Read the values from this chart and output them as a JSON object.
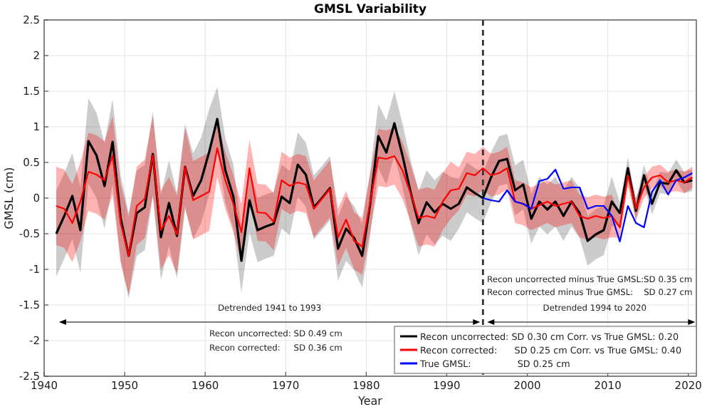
{
  "chart_data": {
    "type": "line",
    "title": "GMSL Variability",
    "xlabel": "Year",
    "ylabel": "GMSL (cm)",
    "xlim": [
      1940,
      2021
    ],
    "xticks": [
      1940,
      1950,
      1960,
      1970,
      1980,
      1990,
      2000,
      2010,
      2020
    ],
    "ylim": [
      -2.5,
      2.5
    ],
    "yticks": [
      -2.5,
      -2,
      -1.5,
      -1,
      -0.5,
      0,
      0.5,
      1,
      1.5,
      2,
      2.5
    ],
    "grid": true,
    "legend": "bottom right",
    "ref_lines": [
      {
        "axis": "x",
        "value": 1994.5,
        "color": "#333333",
        "line_style": "dashed"
      }
    ],
    "annotations": [
      "Detrended 1941 to 1993",
      "Detrended 1994 to 2020",
      "Recon uncorrected: SD 0.49 cm",
      "Recon corrected:     SD 0.36 cm",
      "Recon uncorrected minus True GMSL:SD 0.35 cm",
      "Recon corrected minus True GMSL:    SD 0.27 cm"
    ],
    "series": [
      {
        "name": "Recon uncorrected: SD 0.30 cm Corr. vs True GMSL: 0.20",
        "color": "#000000",
        "x": [
          1941.5,
          1942.5,
          1943.5,
          1944.5,
          1945.5,
          1946.5,
          1947.5,
          1948.5,
          1949.5,
          1950.5,
          1951.5,
          1952.5,
          1953.5,
          1954.5,
          1955.5,
          1956.5,
          1957.5,
          1958.5,
          1959.5,
          1960.5,
          1961.5,
          1962.5,
          1963.5,
          1964.5,
          1965.5,
          1966.5,
          1967.5,
          1968.5,
          1969.5,
          1970.5,
          1971.5,
          1972.5,
          1973.5,
          1974.5,
          1975.5,
          1976.5,
          1977.5,
          1978.5,
          1979.5,
          1980.5,
          1981.5,
          1982.5,
          1983.5,
          1984.5,
          1985.5,
          1986.5,
          1987.5,
          1988.5,
          1989.5,
          1990.5,
          1991.5,
          1992.5,
          1993.5,
          1994.5,
          1995.5,
          1996.5,
          1997.5,
          1998.5,
          1999.5,
          2000.5,
          2001.5,
          2002.5,
          2003.5,
          2004.5,
          2005.5,
          2006.5,
          2007.5,
          2008.5,
          2009.5,
          2010.5,
          2011.5,
          2012.5,
          2013.5,
          2014.5,
          2015.5,
          2016.5,
          2017.5,
          2018.5,
          2019.5,
          2020.5
        ],
        "values": [
          -0.5,
          -0.25,
          0.03,
          -0.45,
          0.8,
          0.6,
          0.17,
          0.79,
          -0.28,
          -0.81,
          -0.21,
          -0.13,
          0.62,
          -0.55,
          -0.07,
          -0.53,
          0.44,
          0.03,
          0.25,
          0.65,
          1.11,
          0.39,
          0.02,
          -0.88,
          -0.03,
          -0.45,
          -0.4,
          -0.36,
          0.02,
          -0.07,
          0.47,
          0.33,
          -0.13,
          0,
          0.14,
          -0.71,
          -0.43,
          -0.56,
          -0.81,
          -0.08,
          0.87,
          0.64,
          1.05,
          0.6,
          0.09,
          -0.35,
          -0.06,
          -0.2,
          -0.08,
          -0.15,
          -0.08,
          0.15,
          0.07,
          0,
          0.29,
          0.52,
          0.55,
          0.11,
          0.19,
          -0.29,
          -0.05,
          -0.16,
          -0.05,
          -0.25,
          -0.05,
          -0.21,
          -0.6,
          -0.51,
          -0.45,
          -0.05,
          -0.21,
          0.42,
          -0.18,
          0.32,
          -0.08,
          0.22,
          0.2,
          0.39,
          0.22,
          0.25
        ],
        "lower": [
          -1.1,
          -0.85,
          -0.57,
          -1.05,
          0.2,
          0,
          -0.43,
          0.19,
          -0.88,
          -1.41,
          -0.81,
          -0.73,
          0.02,
          -1.15,
          -0.67,
          -1.13,
          -0.16,
          -0.57,
          -0.35,
          0.05,
          0.66,
          -0.06,
          -0.43,
          -1.33,
          -0.48,
          -0.9,
          -0.85,
          -0.81,
          -0.43,
          -0.52,
          0.02,
          -0.12,
          -0.58,
          -0.45,
          -0.31,
          -1.16,
          -0.88,
          -1.01,
          -1.26,
          -0.53,
          0.42,
          0.19,
          0.6,
          0.15,
          -0.36,
          -0.8,
          -0.51,
          -0.65,
          -0.53,
          -0.6,
          -0.43,
          -0.2,
          -0.28,
          -0.35,
          -0.06,
          0.17,
          0.2,
          -0.24,
          -0.16,
          -0.64,
          -0.4,
          -0.51,
          -0.4,
          -0.6,
          -0.4,
          -0.56,
          -0.95,
          -0.86,
          -0.8,
          -0.4,
          -0.36,
          0.27,
          -0.33,
          0.17,
          -0.23,
          0.07,
          0.05,
          0.24,
          0.07,
          0.1
        ],
        "upper": [
          0.1,
          0.35,
          0.63,
          0.15,
          1.4,
          1.2,
          0.77,
          1.39,
          0.32,
          -0.21,
          0.39,
          0.47,
          1.22,
          0.05,
          0.53,
          0.07,
          1.04,
          0.63,
          0.85,
          1.25,
          1.56,
          0.84,
          0.47,
          -0.43,
          0.42,
          0,
          0.05,
          0.09,
          0.47,
          0.38,
          0.92,
          0.78,
          0.32,
          0.45,
          0.59,
          -0.26,
          0.02,
          -0.11,
          -0.36,
          0.37,
          1.32,
          1.09,
          1.5,
          1.05,
          0.54,
          0.1,
          0.39,
          0.25,
          0.37,
          0.3,
          0.27,
          0.5,
          0.42,
          0.35,
          0.64,
          0.87,
          0.9,
          0.46,
          0.54,
          0.06,
          0.3,
          0.19,
          0.3,
          0.1,
          0.3,
          0.14,
          -0.25,
          -0.16,
          -0.1,
          0.3,
          -0.06,
          0.57,
          -0.03,
          0.47,
          0.07,
          0.37,
          0.35,
          0.54,
          0.37,
          0.4
        ]
      },
      {
        "name": "Recon corrected:      SD 0.25 cm Corr. vs True GMSL: 0.40",
        "color": "#ff0000",
        "x": [
          1941.5,
          1942.5,
          1943.5,
          1944.5,
          1945.5,
          1946.5,
          1947.5,
          1948.5,
          1949.5,
          1950.5,
          1951.5,
          1952.5,
          1953.5,
          1954.5,
          1955.5,
          1956.5,
          1957.5,
          1958.5,
          1959.5,
          1960.5,
          1961.5,
          1962.5,
          1963.5,
          1964.5,
          1965.5,
          1966.5,
          1967.5,
          1968.5,
          1969.5,
          1970.5,
          1971.5,
          1972.5,
          1973.5,
          1974.5,
          1975.5,
          1976.5,
          1977.5,
          1978.5,
          1979.5,
          1980.5,
          1981.5,
          1982.5,
          1983.5,
          1984.5,
          1985.5,
          1986.5,
          1987.5,
          1988.5,
          1989.5,
          1990.5,
          1991.5,
          1992.5,
          1993.5,
          1994.5,
          1995.5,
          1996.5,
          1997.5,
          1998.5,
          1999.5,
          2000.5,
          2001.5,
          2002.5,
          2003.5,
          2004.5,
          2005.5,
          2006.5,
          2007.5,
          2008.5,
          2009.5,
          2010.5,
          2011.5,
          2012.5,
          2013.5,
          2014.5,
          2015.5,
          2016.5,
          2017.5,
          2018.5,
          2019.5,
          2020.5
        ],
        "values": [
          -0.11,
          -0.15,
          -0.35,
          -0.05,
          0.37,
          0.33,
          0.25,
          0.6,
          -0.35,
          -0.81,
          -0.11,
          -0.01,
          0.6,
          -0.45,
          -0.25,
          -0.51,
          0.44,
          -0.03,
          0.03,
          0.09,
          0.7,
          0.25,
          -0.08,
          -0.48,
          0.42,
          -0.2,
          -0.21,
          -0.33,
          0.25,
          0.17,
          0.22,
          0.19,
          -0.15,
          -0.01,
          0.13,
          -0.55,
          -0.3,
          -0.6,
          -0.68,
          -0.05,
          0.57,
          0.55,
          0.59,
          0.39,
          0.07,
          -0.28,
          -0.25,
          -0.28,
          -0.05,
          0.11,
          0.13,
          0.35,
          0.32,
          0.42,
          0.32,
          0.35,
          0.42,
          -0.05,
          -0.08,
          -0.15,
          -0.1,
          -0.05,
          -0.11,
          -0.08,
          -0.05,
          -0.25,
          -0.29,
          -0.25,
          -0.28,
          -0.25,
          -0.41,
          0.32,
          -0.15,
          0.15,
          0.29,
          0.32,
          0.22,
          0.25,
          0.22,
          0.29
        ],
        "lower": [
          -0.66,
          -0.7,
          -0.9,
          -0.6,
          -0.18,
          -0.22,
          -0.3,
          0.05,
          -0.9,
          -1.36,
          -0.66,
          -0.56,
          0.05,
          -1,
          -0.8,
          -1.06,
          -0.11,
          -0.58,
          -0.52,
          -0.46,
          0.3,
          -0.15,
          -0.48,
          -0.88,
          0.02,
          -0.6,
          -0.61,
          -0.73,
          -0.15,
          -0.23,
          -0.18,
          -0.21,
          -0.55,
          -0.41,
          -0.27,
          -0.95,
          -0.7,
          -1,
          -1.08,
          -0.45,
          0.17,
          0.15,
          0.19,
          -0.01,
          -0.33,
          -0.68,
          -0.65,
          -0.68,
          -0.45,
          -0.29,
          -0.17,
          0.05,
          0.02,
          0.12,
          0.02,
          0.05,
          0.12,
          -0.35,
          -0.38,
          -0.45,
          -0.4,
          -0.35,
          -0.41,
          -0.38,
          -0.35,
          -0.55,
          -0.59,
          -0.55,
          -0.58,
          -0.55,
          -0.56,
          0.17,
          -0.3,
          0,
          0.14,
          0.17,
          0.07,
          0.1,
          0.07,
          0.14
        ],
        "upper": [
          0.44,
          0.4,
          0.2,
          0.5,
          0.92,
          0.88,
          0.8,
          1.15,
          0.2,
          -0.26,
          0.44,
          0.54,
          1.15,
          0.1,
          0.3,
          0.04,
          0.99,
          0.52,
          0.58,
          0.64,
          1.1,
          0.65,
          0.32,
          -0.08,
          0.82,
          0.2,
          0.19,
          0.07,
          0.65,
          0.57,
          0.62,
          0.59,
          0.25,
          0.39,
          0.53,
          -0.15,
          0.1,
          -0.2,
          -0.28,
          0.35,
          0.97,
          0.95,
          0.99,
          0.79,
          0.47,
          0.12,
          0.15,
          0.12,
          0.35,
          0.51,
          0.43,
          0.65,
          0.62,
          0.72,
          0.62,
          0.65,
          0.72,
          0.25,
          0.22,
          0.15,
          0.2,
          0.25,
          0.19,
          0.22,
          0.25,
          0.05,
          0.01,
          0.05,
          0.02,
          0.05,
          -0.26,
          0.47,
          0,
          0.3,
          0.44,
          0.47,
          0.37,
          0.4,
          0.37,
          0.44
        ]
      },
      {
        "name": "True GMSL:                SD 0.25 cm",
        "color": "#0000ff",
        "x": [
          1994.5,
          1995.5,
          1996.5,
          1997.5,
          1998.5,
          1999.5,
          2000.5,
          2001.5,
          2002.5,
          2003.5,
          2004.5,
          2005.5,
          2006.5,
          2007.5,
          2008.5,
          2009.5,
          2010.5,
          2011.5,
          2012.5,
          2013.5,
          2014.5,
          2015.5,
          2016.5,
          2017.5,
          2018.5,
          2019.5,
          2020.5
        ],
        "values": [
          0,
          -0.03,
          -0.05,
          0.11,
          -0.05,
          -0.08,
          -0.15,
          0.24,
          0.27,
          0.4,
          0.13,
          0.15,
          0.15,
          -0.15,
          -0.11,
          -0.11,
          -0.25,
          -0.61,
          -0.11,
          -0.35,
          -0.41,
          0.09,
          0.25,
          0.05,
          0.25,
          0.29,
          0.35
        ]
      }
    ]
  }
}
